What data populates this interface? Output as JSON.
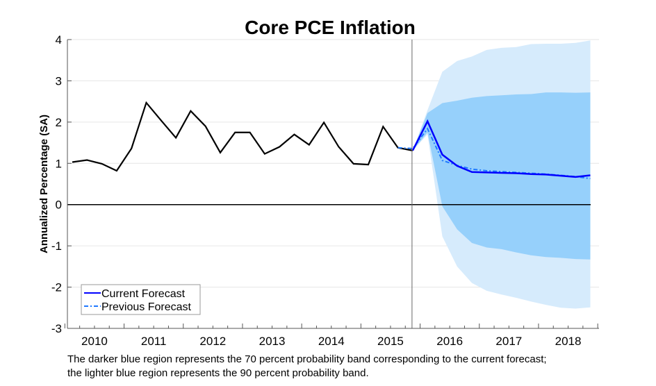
{
  "chart_data": {
    "type": "line",
    "title": "Core PCE Inflation",
    "ylabel": "Annualized Percentage (SA)",
    "xlabel": "",
    "ylim": [
      -3,
      4
    ],
    "yticks": [
      "-3",
      "-2",
      "-1",
      "0",
      "1",
      "2",
      "3",
      "4"
    ],
    "xtick_labels": [
      "2010",
      "2011",
      "2012",
      "2013",
      "2014",
      "2015",
      "2016",
      "2017",
      "2018"
    ],
    "x_frequency": "quarterly",
    "x_start": "2010Q1",
    "grid": true,
    "forecast_start": "2015Q4",
    "legend_position": "bottom-left",
    "history": {
      "x_start": "2010Q1",
      "values": [
        1.03,
        1.08,
        0.99,
        0.82,
        1.36,
        2.47,
        2.04,
        1.62,
        2.27,
        1.9,
        1.26,
        1.75,
        1.75,
        1.23,
        1.4,
        1.7,
        1.45,
        1.99,
        1.4,
        0.99,
        0.97,
        1.89,
        1.38,
        1.31
      ],
      "color": "#000000"
    },
    "series": [
      {
        "name": "Current Forecast",
        "x_start": "2015Q4",
        "values": [
          1.31,
          2.02,
          1.21,
          0.94,
          0.79,
          0.78,
          0.77,
          0.76,
          0.74,
          0.73,
          0.7,
          0.67,
          0.71
        ],
        "color": "#0000ff",
        "style": "solid"
      },
      {
        "name": "Previous Forecast",
        "x_start": "2015Q3",
        "values": [
          1.38,
          1.36,
          1.84,
          1.07,
          0.95,
          0.86,
          0.82,
          0.8,
          0.78,
          0.76,
          0.74,
          0.71,
          0.68,
          0.63
        ],
        "color": "#1e78ff",
        "style": "dash-dot"
      }
    ],
    "bands": [
      {
        "level": "90 percent",
        "x_start": "2015Q4",
        "color": "#d6ebfc",
        "upper": [
          1.31,
          2.29,
          3.22,
          3.48,
          3.59,
          3.75,
          3.8,
          3.82,
          3.89,
          3.9,
          3.9,
          3.92,
          3.98
        ],
        "lower": [
          1.31,
          1.7,
          -0.77,
          -1.5,
          -1.9,
          -2.09,
          -2.18,
          -2.26,
          -2.35,
          -2.43,
          -2.5,
          -2.52,
          -2.49
        ]
      },
      {
        "level": "70 percent",
        "x_start": "2015Q4",
        "color": "#96d0fb",
        "upper": [
          1.31,
          2.22,
          2.46,
          2.52,
          2.59,
          2.63,
          2.65,
          2.67,
          2.68,
          2.72,
          2.72,
          2.71,
          2.72
        ],
        "lower": [
          1.31,
          1.75,
          -0.04,
          -0.6,
          -0.93,
          -1.04,
          -1.08,
          -1.16,
          -1.23,
          -1.27,
          -1.29,
          -1.32,
          -1.33
        ]
      }
    ]
  },
  "caption": [
    "The darker blue region represents the 70 percent probability band corresponding to the current forecast;",
    "the lighter blue region represents the 90 percent probability band."
  ]
}
